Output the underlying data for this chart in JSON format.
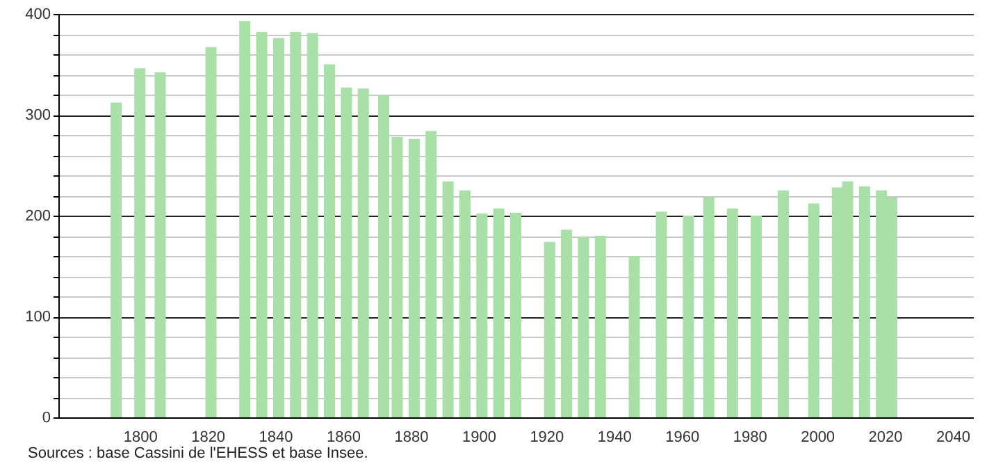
{
  "chart_data": {
    "type": "bar",
    "x": [
      1793,
      1800,
      1806,
      1821,
      1831,
      1836,
      1841,
      1846,
      1851,
      1856,
      1861,
      1866,
      1872,
      1876,
      1881,
      1886,
      1891,
      1896,
      1901,
      1906,
      1911,
      1921,
      1926,
      1931,
      1936,
      1946,
      1954,
      1962,
      1968,
      1975,
      1982,
      1990,
      1999,
      2006,
      2009,
      2014,
      2019,
      2022
    ],
    "values": [
      312,
      346,
      342,
      367,
      393,
      382,
      376,
      382,
      381,
      350,
      327,
      326,
      320,
      278,
      276,
      284,
      234,
      225,
      202,
      207,
      203,
      174,
      186,
      179,
      180,
      160,
      204,
      200,
      218,
      207,
      200,
      225,
      212,
      228,
      234,
      229,
      225,
      218
    ],
    "color": "#a8e0a8",
    "xlim": [
      1778,
      2044
    ],
    "xticks": [
      1800,
      1820,
      1840,
      1860,
      1880,
      1900,
      1920,
      1940,
      1960,
      1980,
      2000,
      2020,
      2040
    ],
    "ylim": [
      0,
      400
    ],
    "yticks": [
      0,
      {
        "value": 20,
        "label": null
      },
      {
        "value": 40,
        "label": null
      },
      {
        "value": 60,
        "label": null
      },
      {
        "value": 80,
        "label": null
      },
      100,
      {
        "value": 120,
        "label": null
      },
      {
        "value": 140,
        "label": null
      },
      {
        "value": 160,
        "label": null
      },
      {
        "value": 180,
        "label": null
      },
      200,
      {
        "value": 220,
        "label": null
      },
      {
        "value": 240,
        "label": null
      },
      {
        "value": 260,
        "label": null
      },
      {
        "value": 280,
        "label": null
      },
      300,
      {
        "value": 320,
        "label": null
      },
      {
        "value": 340,
        "label": null
      },
      {
        "value": 360,
        "label": null
      },
      {
        "value": 380,
        "label": null
      },
      400
    ],
    "grid": "y",
    "annotations": [
      "Sources : base Cassini de l'EHESS et base Insee."
    ]
  }
}
